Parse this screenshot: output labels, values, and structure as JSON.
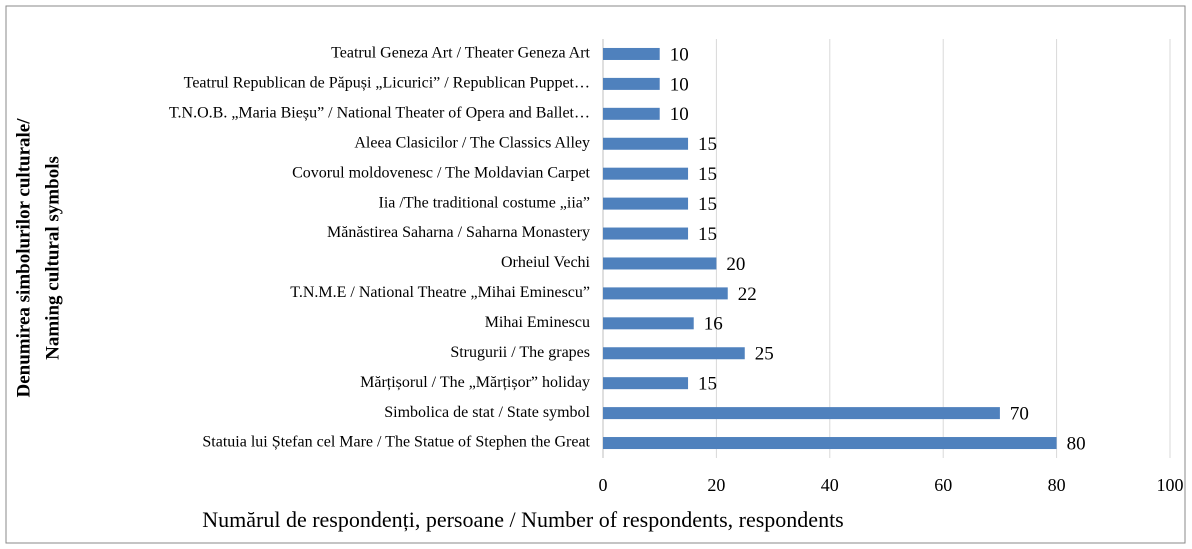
{
  "chart_data": {
    "type": "barh",
    "ylabel": [
      "Denumirea simbolurilor culturale/",
      "Naming cultural symbols"
    ],
    "xlabel": "Numărul de respondenți, persoane / Number of respondents, respondents",
    "categories": [
      "Teatrul Geneza Art / Theater Geneza Art",
      "Teatrul Republican de Păpuși „Licurici” / Republican Puppet…",
      "T.N.O.B. „Maria Bieșu” / National Theater of Opera and Ballet…",
      "Aleea Clasicilor / The Classics Alley",
      "Covorul moldovenesc / The Moldavian Carpet",
      "Iia /The traditional costume „iia”",
      "Mănăstirea Saharna / Saharna Monastery",
      "Orheiul Vechi",
      "T.N.M.E / National Theatre „Mihai Eminescu”",
      "Mihai Eminescu",
      "Strugurii / The grapes",
      "Mărțișorul / The „Mărțișor” holiday",
      "Simbolica de stat / State symbol",
      "Statuia lui Ștefan cel Mare / The Statue of Stephen the Great"
    ],
    "values": [
      10,
      10,
      10,
      15,
      15,
      15,
      15,
      20,
      22,
      16,
      25,
      15,
      70,
      80
    ],
    "color": "#4f81bd",
    "xlim": [
      0,
      100
    ],
    "xticks": [
      0,
      20,
      40,
      60,
      80,
      100
    ],
    "grid": true
  }
}
